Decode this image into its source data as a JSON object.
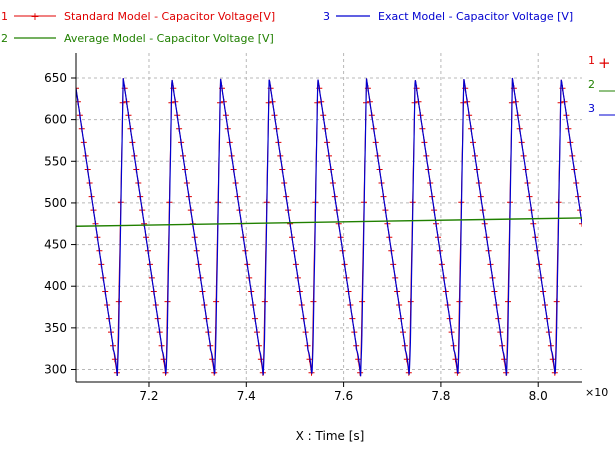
{
  "chart_data": {
    "type": "line",
    "xlabel": "X : Time [s]",
    "x_multiplier_label": "×10",
    "xlim": [
      7.05,
      8.09
    ],
    "ylim": [
      285,
      680
    ],
    "x_ticks": [
      "7.2",
      "7.4",
      "7.6",
      "7.8",
      "8.0"
    ],
    "y_ticks": [
      "300",
      "350",
      "400",
      "450",
      "500",
      "550",
      "600",
      "650"
    ],
    "grid": true,
    "legend_position": "top",
    "period": 0.1,
    "cycle_start": 7.0,
    "cycle_min": 292,
    "cycle_peak": 650,
    "series": [
      {
        "id": "1",
        "name": "Standard Model - Capacitor Voltage[V]",
        "color": "#e00000",
        "marker": "+",
        "shape": "sawtooth"
      },
      {
        "id": "2",
        "name": "Average Model - Capacitor Voltage [V]",
        "color": "#208000",
        "shape": "linear",
        "x": [
          7.05,
          8.09
        ],
        "y": [
          472,
          482
        ]
      },
      {
        "id": "3",
        "name": "Exact Model - Capacitor Voltage [V]",
        "color": "#0000d0",
        "shape": "sawtooth_rounded"
      }
    ],
    "legend_labels": {
      "l1": "Standard Model - Capacitor Voltage[V]",
      "l2": "Average Model - Capacitor Voltage [V]",
      "l3": "Exact Model - Capacitor Voltage [V]"
    }
  }
}
